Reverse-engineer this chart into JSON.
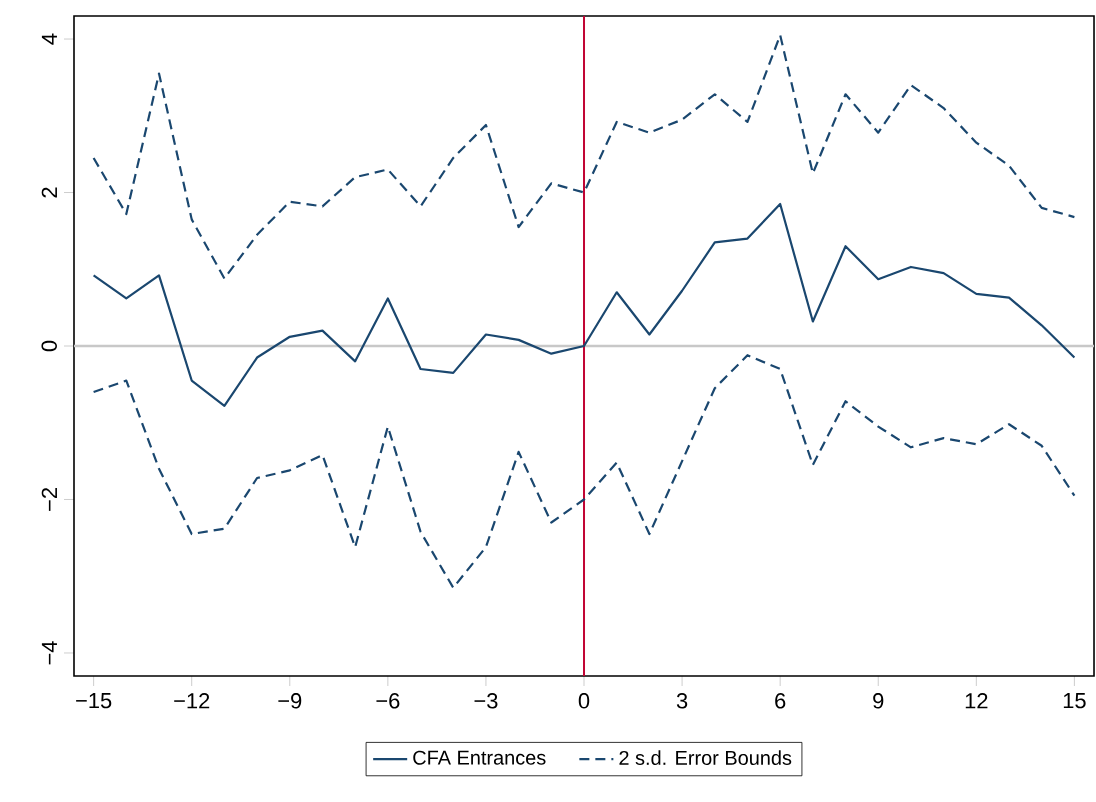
{
  "chart_data": {
    "type": "line",
    "x": [
      -15,
      -14,
      -13,
      -12,
      -11,
      -10,
      -9,
      -8,
      -7,
      -6,
      -5,
      -4,
      -3,
      -2,
      -1,
      0,
      1,
      2,
      3,
      4,
      5,
      6,
      7,
      8,
      9,
      10,
      11,
      12,
      13,
      14,
      15
    ],
    "series": [
      {
        "name": "CFA Entrances",
        "color": "#1a476f",
        "line_style": "solid",
        "values": [
          0.92,
          0.62,
          0.92,
          -0.45,
          -0.78,
          -0.15,
          0.12,
          0.2,
          -0.2,
          0.62,
          -0.3,
          -0.35,
          0.15,
          0.08,
          -0.1,
          0,
          0.7,
          0.15,
          0.72,
          1.35,
          1.4,
          1.85,
          0.32,
          1.3,
          0.87,
          1.03,
          0.95,
          0.68,
          0.63,
          0.27,
          -0.15
        ]
      },
      {
        "name": "2 s.d. Error Bounds",
        "color": "#1a476f",
        "line_style": "dashed",
        "values": [
          2.45,
          1.72,
          3.55,
          1.65,
          0.88,
          1.45,
          1.88,
          1.82,
          2.2,
          2.3,
          1.82,
          2.45,
          2.88,
          1.55,
          2.12,
          2.0,
          2.92,
          2.78,
          2.95,
          3.28,
          2.92,
          4.05,
          2.25,
          3.28,
          2.78,
          3.4,
          3.1,
          2.65,
          2.35,
          1.8,
          1.68
        ]
      },
      {
        "color": "#1a476f",
        "line_style": "dashed",
        "values": [
          -0.6,
          -0.45,
          -1.6,
          -2.45,
          -2.38,
          -1.72,
          -1.62,
          -1.42,
          -2.62,
          -1.05,
          -2.42,
          -3.15,
          -2.62,
          -1.38,
          -2.3,
          -2.0,
          -1.52,
          -2.45,
          -1.5,
          -0.55,
          -0.12,
          -0.3,
          -1.55,
          -0.72,
          -1.05,
          -1.32,
          -1.2,
          -1.28,
          -1.02,
          -1.3,
          -1.95
        ]
      }
    ],
    "xlim": [
      -15.6,
      15.6
    ],
    "ylim": [
      -4.3,
      4.3
    ],
    "xticks": [
      {
        "value": -15,
        "label": "−15"
      },
      {
        "value": -12,
        "label": "−12"
      },
      {
        "value": -9,
        "label": "−9"
      },
      {
        "value": -6,
        "label": "−6"
      },
      {
        "value": -3,
        "label": "−3"
      },
      0,
      3,
      6,
      9,
      12,
      15
    ],
    "yticks": [
      {
        "value": -4,
        "label": "−4"
      },
      {
        "value": -2,
        "label": "−2"
      },
      0,
      2,
      4
    ],
    "ref_lines": [
      {
        "axis": "y",
        "value": 0,
        "color": "#c8c8c8"
      },
      {
        "axis": "x",
        "value": 0,
        "color": "#c10534"
      }
    ],
    "legend": "bottom"
  }
}
